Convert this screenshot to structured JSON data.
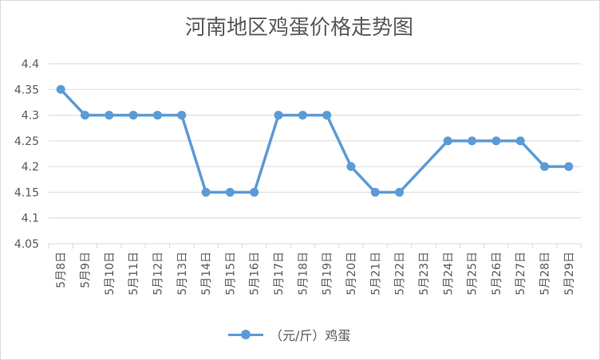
{
  "chart_data": {
    "type": "line",
    "title": "河南地区鸡蛋价格走势图",
    "categories": [
      "5月8日",
      "5月9日",
      "5月10日",
      "5月11日",
      "5月12日",
      "5月13日",
      "5月14日",
      "5月15日",
      "5月16日",
      "5月17日",
      "5月18日",
      "5月19日",
      "5月20日",
      "5月21日",
      "5月22日",
      "5月23日",
      "5月24日",
      "5月25日",
      "5月26日",
      "5月27日",
      "5月28日",
      "5月29日"
    ],
    "series": [
      {
        "name": "（元/斤）鸡蛋",
        "values": [
          4.35,
          4.3,
          4.3,
          4.3,
          4.3,
          4.3,
          4.15,
          4.15,
          4.15,
          4.3,
          4.3,
          4.3,
          4.2,
          4.15,
          4.15,
          null,
          4.25,
          4.25,
          4.25,
          4.25,
          4.2,
          4.2
        ],
        "color": "#5b9bd5"
      }
    ],
    "yticks": [
      "4.05",
      "4.1",
      "4.15",
      "4.2",
      "4.25",
      "4.3",
      "4.35",
      "4.4"
    ],
    "ylim": [
      4.05,
      4.4
    ],
    "grid": true,
    "legend_position": "bottom",
    "xlabel": "",
    "ylabel": ""
  }
}
